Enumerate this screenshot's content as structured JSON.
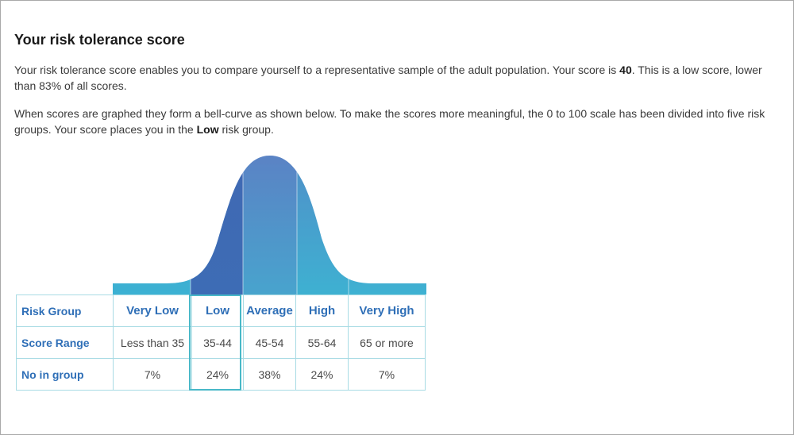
{
  "page": {
    "title": "Your risk tolerance score",
    "para1": {
      "before": "Your risk tolerance score enables you to compare yourself to a representative sample of the adult population. Your score is ",
      "score": "40",
      "after": ". This is a low score, lower than 83% of all scores."
    },
    "para2": {
      "before": "When scores are graphed they form a bell-curve as shown below. To make the scores more meaningful, the 0 to 100 scale has been divided into five risk groups. Your score places you in the ",
      "group": "Low",
      "after": " risk group."
    }
  },
  "table": {
    "row_headers": [
      "Risk Group",
      "Score Range",
      "No in group"
    ],
    "groups": [
      {
        "name": "Very Low",
        "range": "Less than 35",
        "share": "7%"
      },
      {
        "name": "Low",
        "range": "35-44",
        "share": "24%"
      },
      {
        "name": "Average",
        "range": "45-54",
        "share": "38%"
      },
      {
        "name": "High",
        "range": "55-64",
        "share": "24%"
      },
      {
        "name": "Very High",
        "range": "65 or more",
        "share": "7%"
      }
    ],
    "highlighted_group": "Low"
  },
  "colors": {
    "accent_blue": "#2f6fb7",
    "teal": "#3fb3cf",
    "low_band": "#3f6fb5",
    "table_border": "#a8dbe4",
    "highlight_border": "#48b8c8"
  }
}
